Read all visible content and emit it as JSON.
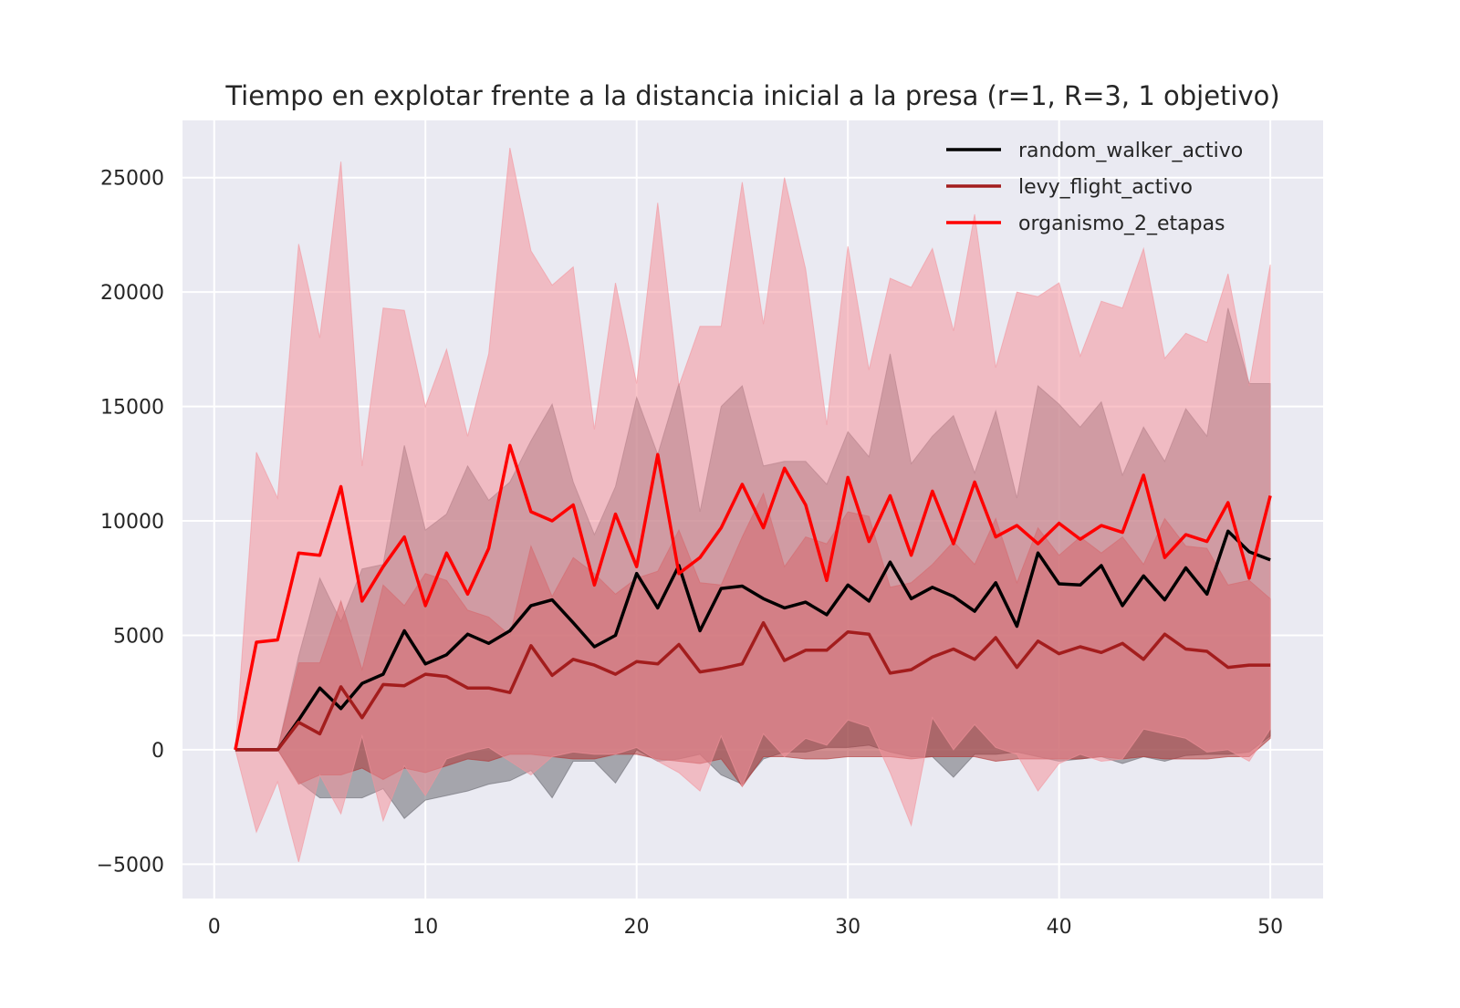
{
  "chart_data": {
    "type": "line",
    "title": "Tiempo en explotar frente a la distancia inicial a la presa (r=1, R=3, 1 objetivo)",
    "xlabel": "",
    "ylabel": "",
    "xlim": [
      -1.5,
      52.5
    ],
    "ylim": [
      -6500,
      27500
    ],
    "x_ticks": [
      0,
      10,
      20,
      30,
      40,
      50
    ],
    "y_ticks": [
      -5000,
      0,
      5000,
      10000,
      15000,
      20000,
      25000
    ],
    "y_tick_labels": [
      "−5000",
      "0",
      "5000",
      "10000",
      "15000",
      "20000",
      "25000"
    ],
    "grid": true,
    "legend_position": "top-right",
    "background_color": "#eaeaf2",
    "x": [
      1,
      2,
      3,
      4,
      5,
      6,
      7,
      8,
      9,
      10,
      11,
      12,
      13,
      14,
      15,
      16,
      17,
      18,
      19,
      20,
      21,
      22,
      23,
      24,
      25,
      26,
      27,
      28,
      29,
      30,
      31,
      32,
      33,
      34,
      35,
      36,
      37,
      38,
      39,
      40,
      41,
      42,
      43,
      44,
      45,
      46,
      47,
      48,
      49,
      50
    ],
    "series": [
      {
        "name": "random_walker_activo",
        "color": "#000000",
        "band_color": "#6b6b73",
        "values": [
          0,
          0,
          0,
          1300,
          2700,
          1800,
          2900,
          3300,
          5200,
          3750,
          4150,
          5050,
          4650,
          5200,
          6300,
          6550,
          5550,
          4500,
          5000,
          7700,
          6200,
          8050,
          5200,
          7050,
          7150,
          6600,
          6200,
          6450,
          5900,
          7200,
          6500,
          8200,
          6600,
          7100,
          6700,
          6050,
          7300,
          5400,
          8600,
          7250,
          7200,
          8050,
          6300,
          7600,
          6550,
          7950,
          6800,
          9550,
          8650,
          8300
        ],
        "lower": [
          0,
          0,
          0,
          -1400,
          -2100,
          -2100,
          -2100,
          -1700,
          -3000,
          -2200,
          -2000,
          -1800,
          -1500,
          -1350,
          -900,
          -2100,
          -500,
          -500,
          -1450,
          0,
          -500,
          -400,
          -200,
          -1100,
          -1500,
          -400,
          -100,
          -100,
          100,
          100,
          200,
          -100,
          -300,
          -300,
          -1200,
          -200,
          -200,
          -100,
          -300,
          -500,
          -400,
          -300,
          -600,
          -300,
          -500,
          -250,
          -200,
          -200,
          -100,
          600
        ],
        "upper": [
          0,
          0,
          0,
          4100,
          7500,
          5600,
          7900,
          8100,
          13300,
          9600,
          10300,
          12400,
          10900,
          11700,
          13500,
          15100,
          11700,
          9400,
          11500,
          15400,
          12900,
          16000,
          10400,
          15000,
          15900,
          12400,
          12600,
          12600,
          11600,
          13900,
          12800,
          17300,
          12500,
          13700,
          14600,
          12100,
          14800,
          11000,
          15900,
          15100,
          14100,
          15200,
          12000,
          14100,
          12600,
          14900,
          13700,
          19300,
          16000,
          16000
        ]
      },
      {
        "name": "levy_flight_activo",
        "color": "#a31d1d",
        "band_color": "#b03535",
        "values": [
          0,
          0,
          0,
          1200,
          700,
          2750,
          1400,
          2850,
          2800,
          3300,
          3200,
          2700,
          2700,
          2500,
          4550,
          3250,
          3950,
          3700,
          3300,
          3850,
          3750,
          4600,
          3400,
          3550,
          3750,
          5550,
          3900,
          4350,
          4350,
          5150,
          5050,
          3350,
          3500,
          4050,
          4400,
          3950,
          4900,
          3600,
          4750,
          4200,
          4500,
          4250,
          4650,
          3950,
          5050,
          4400,
          4300,
          3600,
          3700,
          3700
        ],
        "lower": [
          0,
          0,
          0,
          -1500,
          -1100,
          -1100,
          -800,
          -1300,
          -800,
          -1000,
          -700,
          -400,
          -500,
          -200,
          -200,
          -300,
          -400,
          -400,
          -200,
          -200,
          -400,
          -500,
          -600,
          -400,
          -1600,
          -300,
          -300,
          -400,
          -400,
          -300,
          -300,
          -300,
          -400,
          -300,
          -300,
          -300,
          -500,
          -400,
          -400,
          -400,
          -400,
          -300,
          -400,
          -300,
          -400,
          -400,
          -400,
          -300,
          -300,
          500
        ],
        "upper": [
          0,
          0,
          0,
          3800,
          3800,
          6500,
          3500,
          7200,
          6300,
          7700,
          7400,
          6100,
          5800,
          5000,
          8900,
          6700,
          8400,
          7700,
          6800,
          7500,
          7800,
          9600,
          7300,
          7200,
          9300,
          11200,
          8000,
          9300,
          9000,
          10400,
          10200,
          7100,
          7300,
          8100,
          9100,
          8100,
          10100,
          7300,
          9700,
          8500,
          9300,
          8600,
          9300,
          8100,
          10100,
          8900,
          8800,
          7200,
          7400,
          6600
        ]
      },
      {
        "name": "organismo_2_etapas",
        "color": "#ff0000",
        "band_color": "#f4949c",
        "values": [
          0,
          4700,
          4800,
          8600,
          8500,
          11500,
          6500,
          8000,
          9300,
          6300,
          8600,
          6800,
          8800,
          13300,
          10400,
          10000,
          10700,
          7200,
          10300,
          8000,
          12900,
          7700,
          8400,
          9700,
          11600,
          9700,
          12300,
          10700,
          7400,
          11900,
          9100,
          11100,
          8500,
          11300,
          9000,
          11700,
          9300,
          9800,
          9000,
          9900,
          9200,
          9800,
          9500,
          12000,
          8400,
          9400,
          9100,
          10800,
          7500,
          11100
        ],
        "lower": [
          0,
          -3600,
          -1400,
          -4900,
          -1100,
          -2800,
          600,
          -3100,
          -700,
          -2000,
          -400,
          -100,
          100,
          -500,
          -1100,
          -300,
          -100,
          -200,
          -200,
          100,
          -500,
          -1000,
          -1800,
          600,
          -1600,
          700,
          -300,
          500,
          200,
          1300,
          1000,
          -1000,
          -3300,
          1400,
          0,
          1100,
          100,
          -200,
          -1800,
          -600,
          -200,
          -500,
          -400,
          900,
          700,
          500,
          -100,
          0,
          -500,
          900
        ],
        "upper": [
          0,
          13000,
          11000,
          22100,
          18000,
          25700,
          12400,
          19300,
          19200,
          15000,
          17500,
          13700,
          17300,
          26300,
          21800,
          20300,
          21100,
          14000,
          20400,
          16000,
          23900,
          15900,
          18500,
          18500,
          24800,
          18600,
          25000,
          21000,
          14200,
          22000,
          16600,
          20600,
          20200,
          21900,
          18300,
          23400,
          16700,
          20000,
          19800,
          20400,
          17200,
          19600,
          19300,
          21900,
          17100,
          18200,
          17800,
          20800,
          15900,
          21200
        ]
      }
    ]
  }
}
